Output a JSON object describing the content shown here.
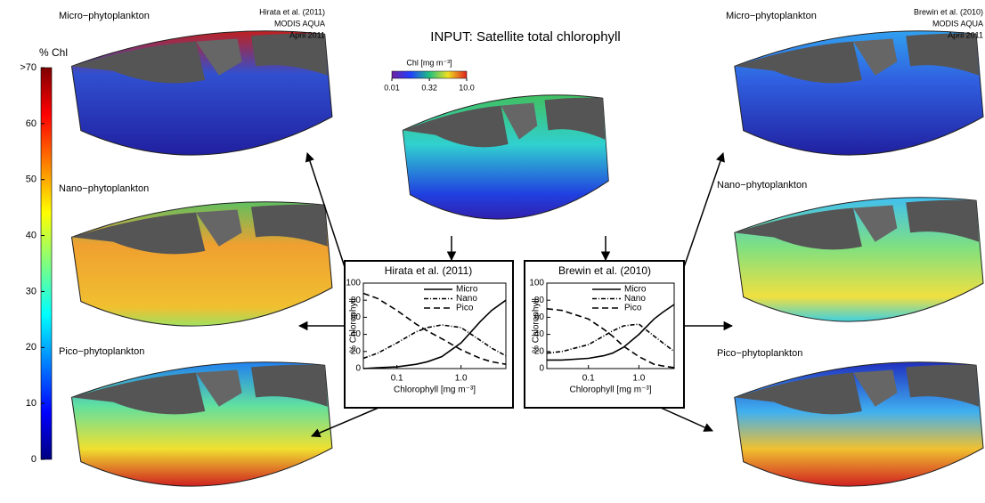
{
  "center": {
    "title": "INPUT: Satellite total chlorophyll"
  },
  "chl_colorbar": {
    "title": "Chl [mg m⁻³]",
    "lim": [
      0.01,
      10
    ],
    "log": true,
    "ticks": [
      {
        "value": 0.01,
        "label": "0.01"
      },
      {
        "value": 0.32,
        "label": "0.32"
      },
      {
        "value": 10,
        "label": "10.0"
      }
    ]
  },
  "colorbar": {
    "title": "% Chl",
    "lim": [
      0,
      70
    ],
    "ticks": [
      {
        "value": 70,
        "label": ">70"
      },
      60,
      50,
      40,
      30,
      20,
      10,
      0
    ]
  },
  "panels": {
    "left": {
      "source": [
        "Hirata et al. (2011)",
        "MODIS AQUA",
        "April 2011"
      ],
      "labels": [
        "Micro−phytoplankton",
        "Nano−phytoplankton",
        "Pico−phytoplankton"
      ]
    },
    "right": {
      "source": [
        "Brewin et al. (2010)",
        "MODIS AQUA",
        "April 2011"
      ],
      "labels": [
        "Micro−phytoplankton",
        "Nano−phytoplankton",
        "Pico−phytoplankton"
      ]
    }
  },
  "chart_data": [
    {
      "type": "line",
      "title": "Hirata et al. (2011)",
      "xlabel": "Chlorophyll [mg m⁻³]",
      "ylabel": "% Chlorophyll",
      "log_x": true,
      "xlim": [
        0.03,
        5
      ],
      "ylim": [
        0,
        100
      ],
      "xticks": [
        {
          "value": 0.1,
          "label": "0.1"
        },
        {
          "value": 1,
          "label": "1.0"
        }
      ],
      "yticks": [
        0,
        20,
        40,
        60,
        80,
        100
      ],
      "x": [
        0.03,
        0.05,
        0.1,
        0.2,
        0.3,
        0.5,
        1,
        2,
        3,
        5
      ],
      "series": [
        {
          "name": "Micro",
          "color": "#000000",
          "style": "solid",
          "values": [
            0,
            1,
            2,
            5,
            8,
            14,
            30,
            55,
            68,
            80
          ]
        },
        {
          "name": "Nano",
          "color": "#000000",
          "style": "dashdot",
          "values": [
            12,
            18,
            30,
            43,
            48,
            51,
            48,
            33,
            24,
            15
          ]
        },
        {
          "name": "Pico",
          "color": "#000000",
          "style": "dashed",
          "values": [
            88,
            82,
            68,
            52,
            44,
            35,
            22,
            12,
            8,
            5
          ]
        }
      ]
    },
    {
      "type": "line",
      "title": "Brewin et al. (2010)",
      "xlabel": "Chlorophyll [mg m⁻³]",
      "ylabel": "% Chlorophyll",
      "log_x": true,
      "xlim": [
        0.015,
        5
      ],
      "ylim": [
        0,
        100
      ],
      "xticks": [
        {
          "value": 0.1,
          "label": "0.1"
        },
        {
          "value": 1,
          "label": "1.0"
        }
      ],
      "yticks": [
        0,
        20,
        40,
        60,
        80,
        100
      ],
      "x": [
        0.015,
        0.03,
        0.1,
        0.2,
        0.3,
        0.5,
        1,
        2,
        3,
        5
      ],
      "series": [
        {
          "name": "Micro",
          "color": "#000000",
          "style": "solid",
          "values": [
            10,
            10,
            12,
            15,
            18,
            25,
            40,
            58,
            66,
            75
          ]
        },
        {
          "name": "Nano",
          "color": "#000000",
          "style": "dashdot",
          "values": [
            18,
            20,
            28,
            38,
            44,
            50,
            52,
            38,
            30,
            20
          ]
        },
        {
          "name": "Pico",
          "color": "#000000",
          "style": "dashed",
          "values": [
            70,
            68,
            58,
            46,
            38,
            26,
            14,
            5,
            3,
            1
          ]
        }
      ]
    }
  ]
}
